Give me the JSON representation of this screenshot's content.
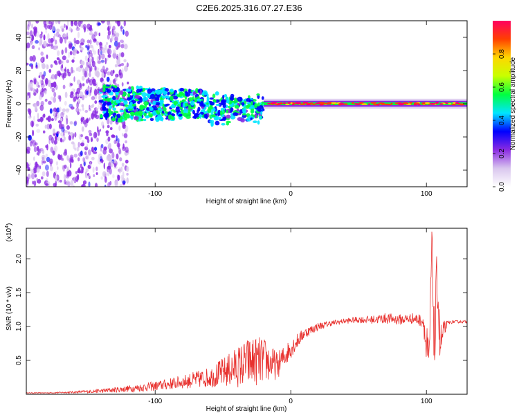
{
  "chart_data": [
    {
      "type": "heatmap",
      "title": "C2E6.2025.316.07.27.E36",
      "xlabel": "Height of straight line (km)",
      "ylabel": "Frequency (Hz)",
      "xlim": [
        -195,
        130
      ],
      "ylim": [
        -50,
        50
      ],
      "x_ticks": [
        -100,
        0,
        100
      ],
      "y_ticks": [
        -40,
        -20,
        0,
        20,
        40
      ],
      "colorbar": {
        "label": "Normalized spectral amplitude",
        "range": [
          0,
          1
        ],
        "ticks": [
          0.0,
          0.2,
          0.4,
          0.6,
          0.8
        ],
        "tick_labels": [
          "0.0",
          "0.2",
          "0.4",
          "0.6",
          "0.8"
        ],
        "colors": [
          "#ffffff",
          "#d9c6ee",
          "#8a2be2",
          "#0000ff",
          "#00e5ff",
          "#00ff40",
          "#c8ff00",
          "#ffd700",
          "#ff4000",
          "#ff0060"
        ]
      },
      "description_regions": [
        {
          "x_range": [
            -195,
            -125
          ],
          "freq_range": [
            -50,
            50
          ],
          "amplitude": "low, scattered"
        },
        {
          "x_range": [
            -140,
            -20
          ],
          "freq_range": [
            -10,
            10
          ],
          "amplitude": "medium"
        },
        {
          "x_range": [
            -20,
            130
          ],
          "freq_range": [
            -2,
            2
          ],
          "amplitude": "high, narrow band near 0 Hz"
        }
      ]
    },
    {
      "type": "line",
      "title": "",
      "xlabel": "Height of straight line (km)",
      "ylabel": "SNR (10 * v/v)",
      "y_multiplier": "(x10",
      "y_multiplier_exp": "4",
      "xlim": [
        -195,
        130
      ],
      "ylim": [
        0,
        2.45
      ],
      "x_ticks": [
        -100,
        0,
        100
      ],
      "y_ticks": [
        0.5,
        1.0,
        1.5,
        2.0
      ],
      "y_tick_labels": [
        "0.5",
        "1.0",
        "1.5",
        "2.0"
      ],
      "series": [
        {
          "name": "SNR",
          "color": "#e8312e",
          "x": [
            -195,
            -180,
            -160,
            -140,
            -120,
            -100,
            -80,
            -60,
            -50,
            -40,
            -30,
            -20,
            -10,
            0,
            10,
            20,
            30,
            40,
            50,
            60,
            70,
            80,
            90,
            98,
            100,
            102,
            104,
            106,
            108,
            110,
            115,
            120,
            130
          ],
          "y": [
            0.02,
            0.02,
            0.03,
            0.05,
            0.08,
            0.12,
            0.18,
            0.25,
            0.32,
            0.4,
            0.48,
            0.5,
            0.42,
            0.68,
            0.9,
            1.0,
            1.05,
            1.08,
            1.1,
            1.1,
            1.12,
            1.1,
            1.12,
            1.08,
            0.6,
            0.4,
            2.3,
            0.6,
            1.8,
            0.7,
            1.05,
            1.07,
            1.07
          ],
          "amplitude": [
            0.005,
            0.006,
            0.015,
            0.03,
            0.05,
            0.07,
            0.1,
            0.15,
            0.22,
            0.3,
            0.38,
            0.35,
            0.2,
            0.15,
            0.08,
            0.06,
            0.04,
            0.04,
            0.05,
            0.06,
            0.08,
            0.08,
            0.08,
            0.1,
            0.5,
            0.4,
            0.2,
            0.6,
            0.5,
            0.4,
            0.03,
            0.02,
            0.02
          ]
        }
      ]
    }
  ]
}
